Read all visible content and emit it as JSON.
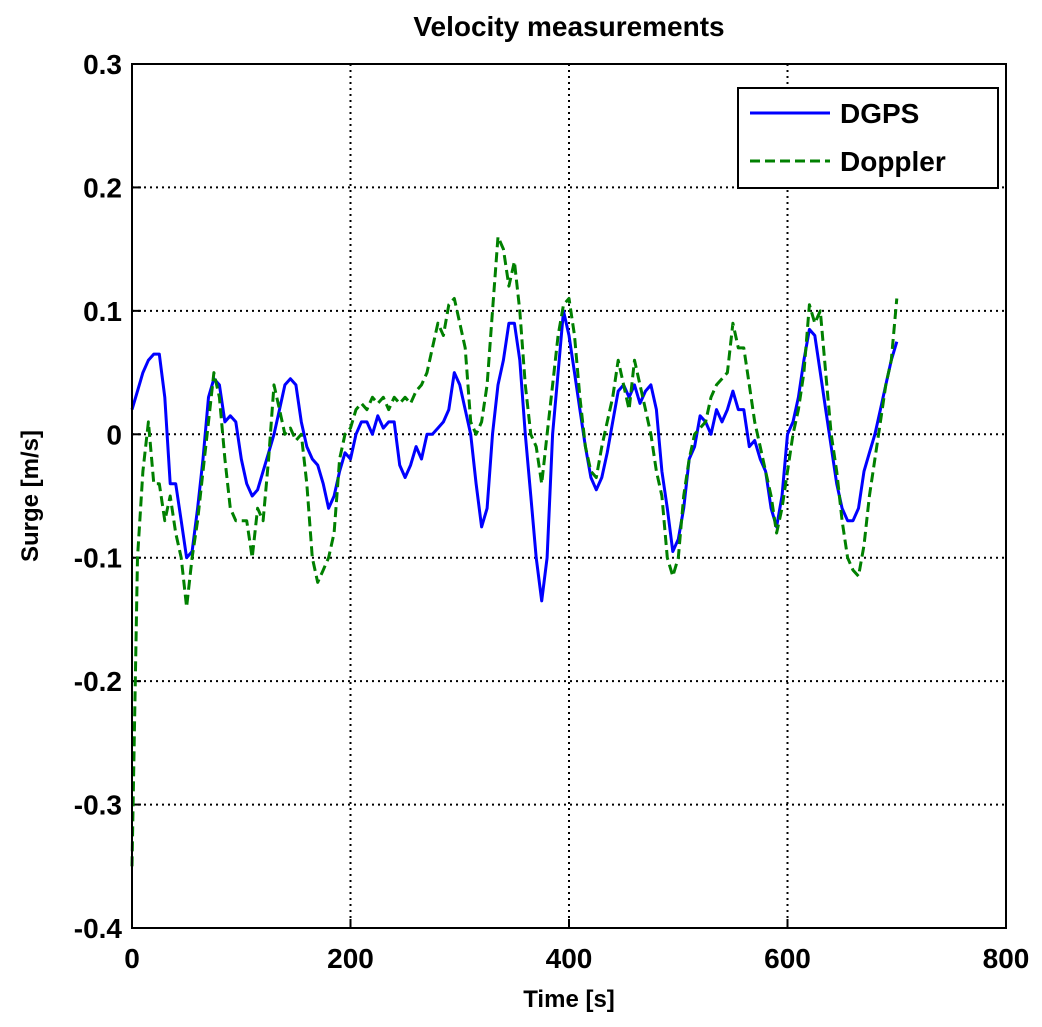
{
  "chart_data": {
    "type": "line",
    "title": "Velocity measurements",
    "xlabel": "Time [s]",
    "ylabel": "Surge [m/s]",
    "x": [
      0,
      5,
      10,
      15,
      20,
      25,
      30,
      35,
      40,
      45,
      50,
      55,
      60,
      65,
      70,
      75,
      80,
      85,
      90,
      95,
      100,
      105,
      110,
      115,
      120,
      125,
      130,
      135,
      140,
      145,
      150,
      155,
      160,
      165,
      170,
      175,
      180,
      185,
      190,
      195,
      200,
      205,
      210,
      215,
      220,
      225,
      230,
      235,
      240,
      245,
      250,
      255,
      260,
      265,
      270,
      275,
      280,
      285,
      290,
      295,
      300,
      305,
      310,
      315,
      320,
      325,
      330,
      335,
      340,
      345,
      350,
      355,
      360,
      365,
      370,
      375,
      380,
      385,
      390,
      395,
      400,
      405,
      410,
      415,
      420,
      425,
      430,
      435,
      440,
      445,
      450,
      455,
      460,
      465,
      470,
      475,
      480,
      485,
      490,
      495,
      500,
      505,
      510,
      515,
      520,
      525,
      530,
      535,
      540,
      545,
      550,
      555,
      560,
      565,
      570,
      575,
      580,
      585,
      590,
      595,
      600,
      605,
      610,
      615,
      620,
      625,
      630,
      635,
      640,
      645,
      650,
      655,
      660,
      665,
      670,
      675,
      680,
      685,
      690,
      695,
      700
    ],
    "series": [
      {
        "name": "DGPS",
        "color": "#0000ff",
        "linestyle": "solid",
        "values": [
          0.02,
          0.035,
          0.05,
          0.06,
          0.065,
          0.065,
          0.03,
          -0.04,
          -0.04,
          -0.07,
          -0.1,
          -0.095,
          -0.06,
          -0.02,
          0.03,
          0.045,
          0.04,
          0.01,
          0.015,
          0.01,
          -0.02,
          -0.04,
          -0.05,
          -0.045,
          -0.03,
          -0.015,
          0.0,
          0.02,
          0.04,
          0.045,
          0.04,
          0.01,
          -0.01,
          -0.02,
          -0.025,
          -0.04,
          -0.06,
          -0.05,
          -0.03,
          -0.015,
          -0.02,
          0.0,
          0.01,
          0.01,
          0.0,
          0.015,
          0.005,
          0.01,
          0.01,
          -0.025,
          -0.035,
          -0.025,
          -0.01,
          -0.02,
          0.0,
          0.0,
          0.005,
          0.01,
          0.02,
          0.05,
          0.04,
          0.02,
          0.0,
          -0.04,
          -0.075,
          -0.06,
          0.0,
          0.04,
          0.06,
          0.09,
          0.09,
          0.06,
          0.0,
          -0.05,
          -0.1,
          -0.135,
          -0.1,
          0.0,
          0.05,
          0.1,
          0.08,
          0.05,
          0.02,
          -0.01,
          -0.035,
          -0.045,
          -0.035,
          -0.015,
          0.01,
          0.035,
          0.04,
          0.03,
          0.04,
          0.025,
          0.035,
          0.04,
          0.02,
          -0.03,
          -0.06,
          -0.095,
          -0.085,
          -0.06,
          -0.02,
          -0.01,
          0.015,
          0.01,
          0.0,
          0.02,
          0.01,
          0.02,
          0.035,
          0.02,
          0.02,
          -0.01,
          -0.005,
          -0.02,
          -0.03,
          -0.06,
          -0.075,
          -0.05,
          0.0,
          0.01,
          0.03,
          0.06,
          0.085,
          0.08,
          0.05,
          0.02,
          -0.01,
          -0.04,
          -0.06,
          -0.07,
          -0.07,
          -0.06,
          -0.03,
          -0.015,
          0.0,
          0.02,
          0.04,
          0.06,
          0.075
        ]
      },
      {
        "name": "Doppler",
        "color": "#008000",
        "linestyle": "dashed",
        "values": [
          -0.35,
          -0.1,
          -0.03,
          0.01,
          -0.04,
          -0.04,
          -0.07,
          -0.05,
          -0.08,
          -0.1,
          -0.14,
          -0.1,
          -0.07,
          -0.03,
          0.01,
          0.05,
          0.03,
          -0.02,
          -0.06,
          -0.07,
          -0.07,
          -0.07,
          -0.1,
          -0.06,
          -0.07,
          -0.02,
          0.04,
          0.02,
          0.0,
          0.005,
          -0.005,
          0.0,
          -0.04,
          -0.1,
          -0.12,
          -0.11,
          -0.1,
          -0.08,
          -0.02,
          0.0,
          0.005,
          0.02,
          0.025,
          0.02,
          0.03,
          0.025,
          0.03,
          0.02,
          0.03,
          0.025,
          0.03,
          0.025,
          0.035,
          0.04,
          0.05,
          0.07,
          0.09,
          0.08,
          0.105,
          0.11,
          0.09,
          0.07,
          0.01,
          0.0,
          0.01,
          0.04,
          0.1,
          0.16,
          0.15,
          0.12,
          0.14,
          0.1,
          0.04,
          0.0,
          -0.01,
          -0.04,
          0.0,
          0.04,
          0.08,
          0.105,
          0.11,
          0.08,
          0.03,
          -0.01,
          -0.03,
          -0.035,
          -0.01,
          0.01,
          0.03,
          0.06,
          0.04,
          0.02,
          0.06,
          0.04,
          0.02,
          0.0,
          -0.03,
          -0.05,
          -0.1,
          -0.115,
          -0.1,
          -0.05,
          -0.02,
          0.0,
          0.005,
          0.01,
          0.03,
          0.04,
          0.045,
          0.05,
          0.09,
          0.07,
          0.07,
          0.04,
          0.01,
          -0.01,
          -0.03,
          -0.05,
          -0.08,
          -0.06,
          -0.03,
          0.0,
          0.02,
          0.05,
          0.105,
          0.09,
          0.1,
          0.05,
          0.0,
          -0.03,
          -0.07,
          -0.1,
          -0.11,
          -0.115,
          -0.09,
          -0.05,
          -0.02,
          0.01,
          0.04,
          0.06,
          0.11
        ]
      }
    ],
    "xlim": [
      0,
      800
    ],
    "xticks": [
      0,
      200,
      400,
      600,
      800
    ],
    "ylim": [
      -0.4,
      0.3
    ],
    "yticks": [
      -0.4,
      -0.3,
      -0.2,
      -0.1,
      0,
      0.1,
      0.2,
      0.3
    ],
    "grid": true,
    "legend": "upper right"
  }
}
